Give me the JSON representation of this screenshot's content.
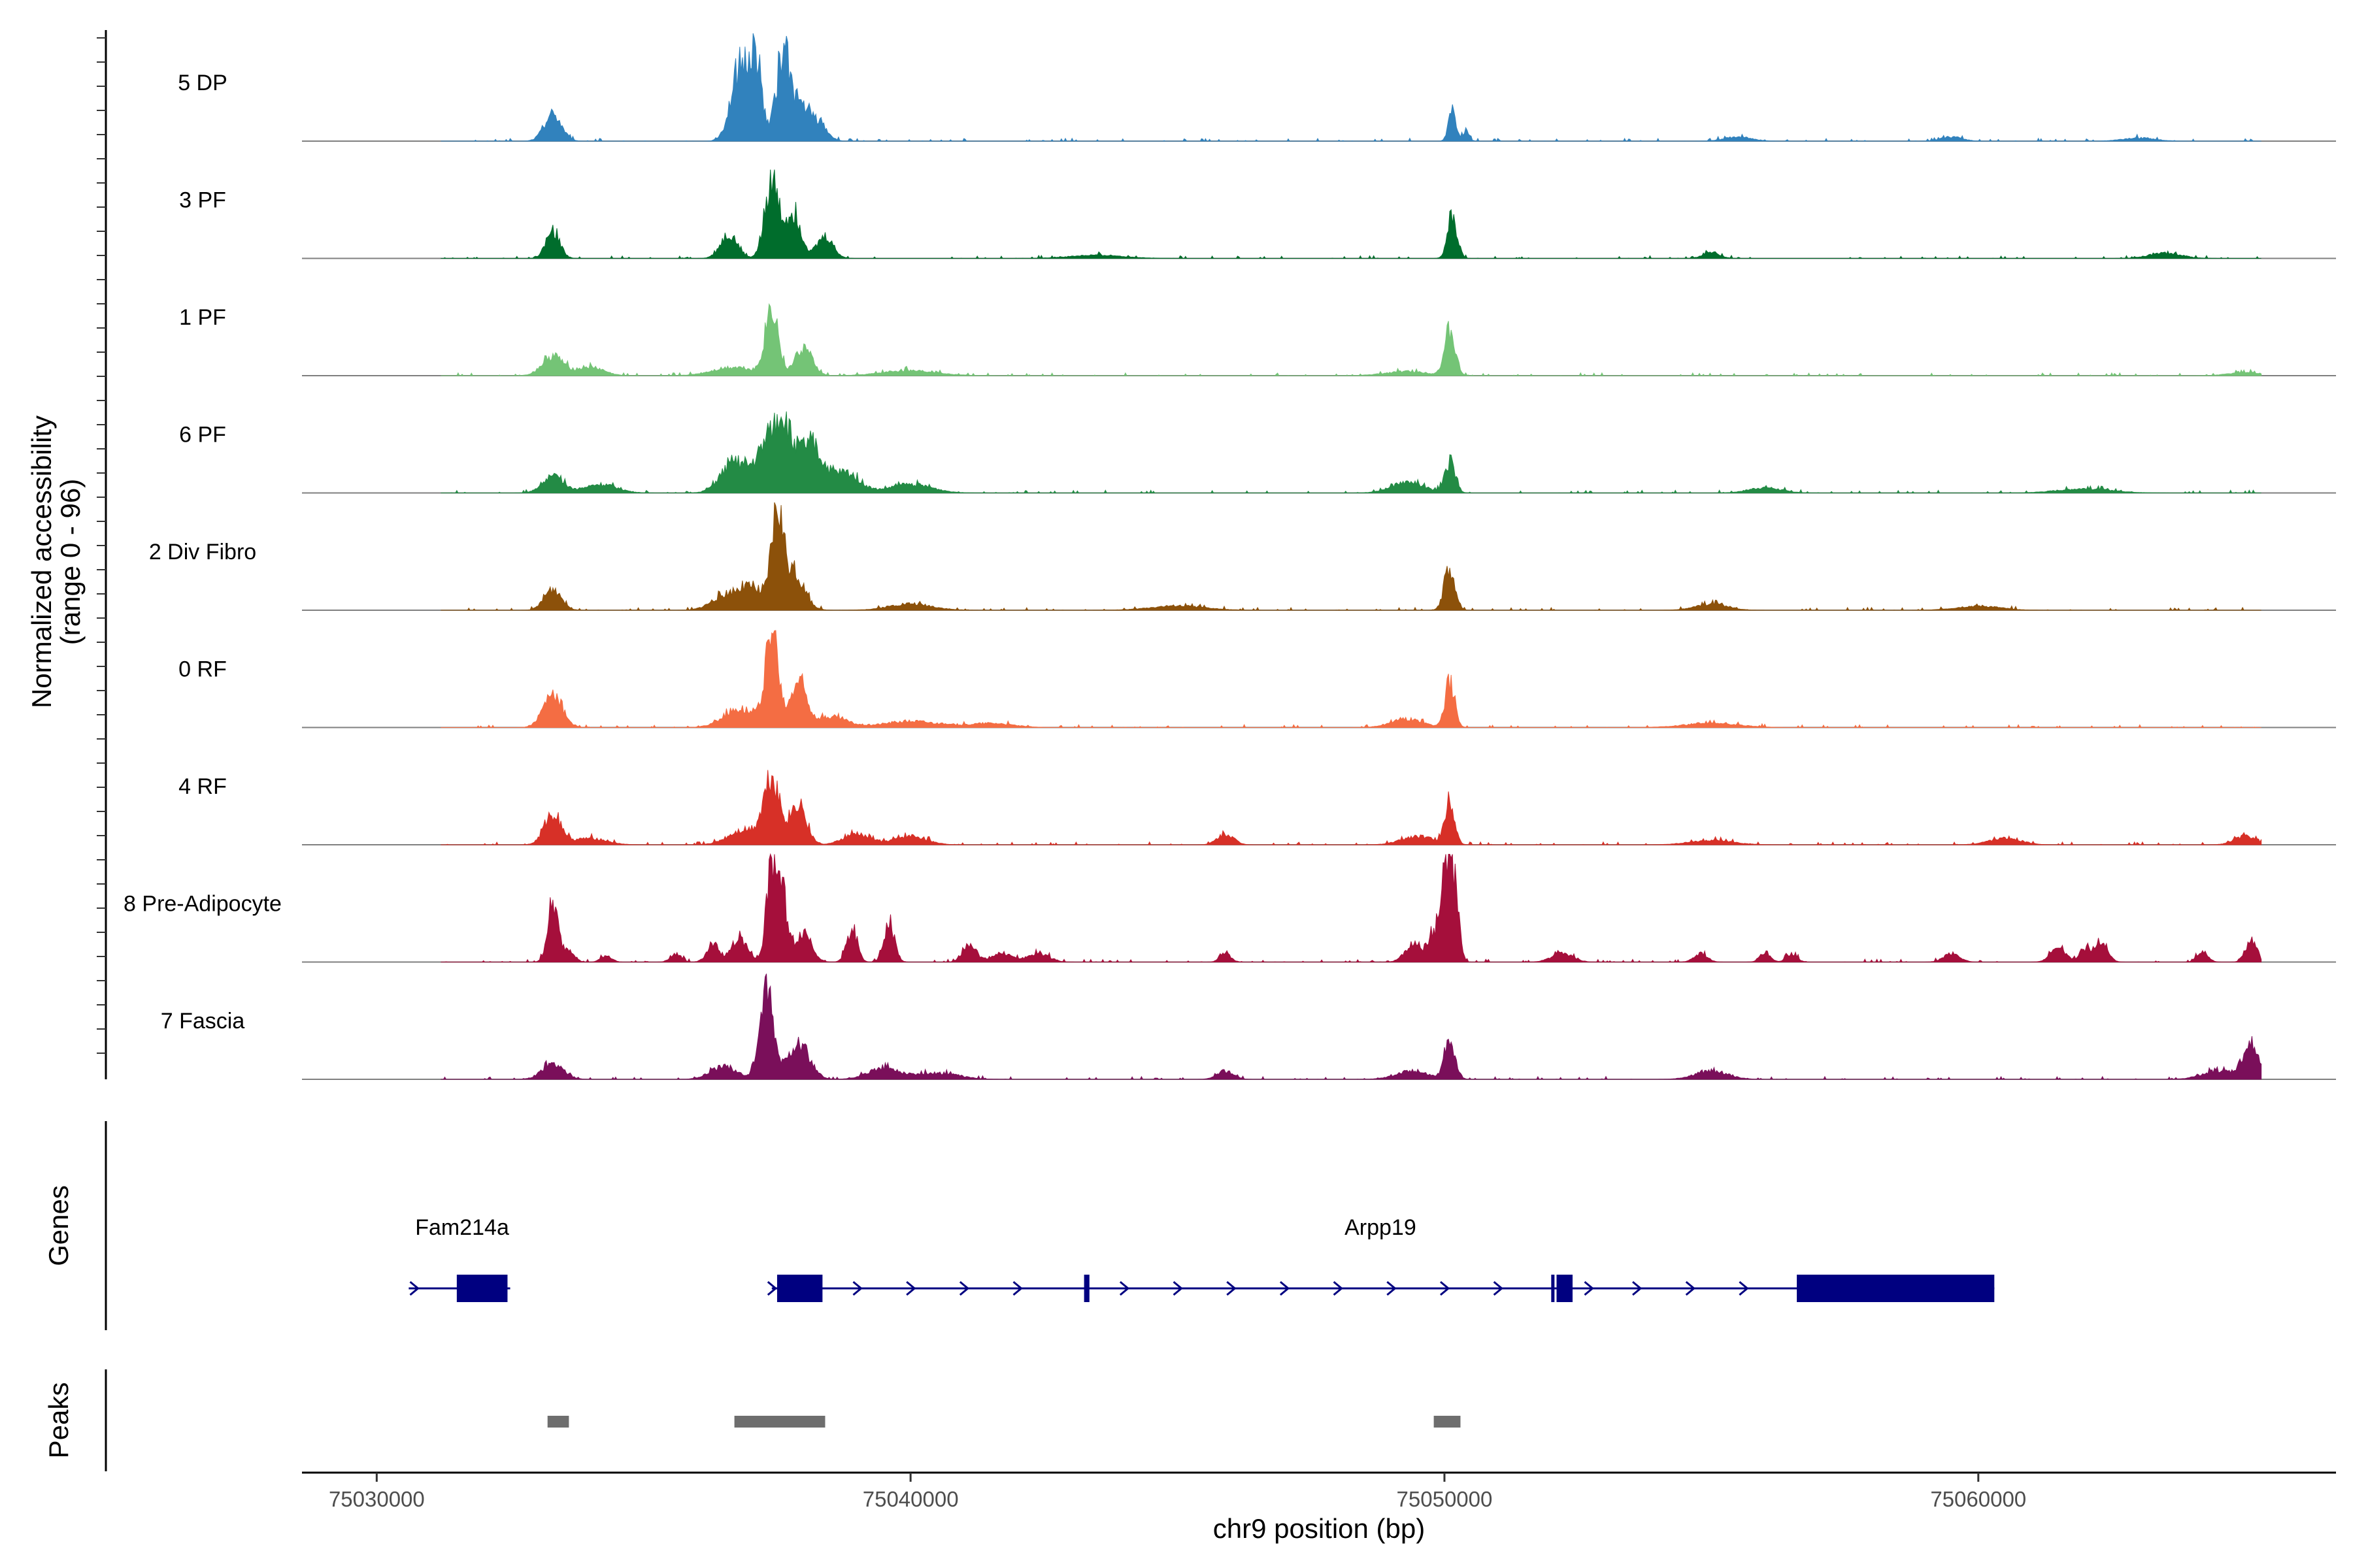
{
  "chart_data": {
    "type": "coverage",
    "y_axis": {
      "title_line1": "Normalized accessibility",
      "title_line2": "(range 0 - 96)",
      "range": [
        0,
        96
      ]
    },
    "x_axis": {
      "title": "chr9 position (bp)",
      "range": [
        75028600,
        75066700
      ],
      "ticks": [
        75030000,
        75040000,
        75050000,
        75060000
      ],
      "tick_labels": [
        "75030000",
        "75040000",
        "75050000",
        "75060000"
      ]
    },
    "tracks": [
      {
        "label": "5 DP",
        "color": "#3182bd",
        "peaks": [
          [
            75033300,
            25,
            160
          ],
          [
            75036800,
            65,
            170
          ],
          [
            75037100,
            70,
            120
          ],
          [
            75037600,
            72,
            120
          ],
          [
            75037900,
            35,
            200
          ],
          [
            75038300,
            14,
            150
          ],
          [
            75050150,
            30,
            70
          ],
          [
            75050400,
            8,
            60
          ],
          [
            75055500,
            4,
            250
          ],
          [
            75059500,
            4,
            200
          ],
          [
            75063000,
            3,
            300
          ]
        ]
      },
      {
        "label": "3 PF",
        "color": "#006d2c",
        "peaks": [
          [
            75033300,
            25,
            130
          ],
          [
            75036600,
            22,
            160
          ],
          [
            75037400,
            70,
            130
          ],
          [
            75037800,
            42,
            150
          ],
          [
            75038400,
            20,
            150
          ],
          [
            75050150,
            38,
            90
          ],
          [
            75043500,
            3,
            500
          ],
          [
            75055000,
            6,
            150
          ],
          [
            75063500,
            5,
            300
          ]
        ]
      },
      {
        "label": "1 PF",
        "color": "#74c476",
        "peaks": [
          [
            75033300,
            18,
            200
          ],
          [
            75034000,
            8,
            250
          ],
          [
            75036700,
            8,
            400
          ],
          [
            75037400,
            62,
            120
          ],
          [
            75038000,
            25,
            160
          ],
          [
            75040000,
            5,
            500
          ],
          [
            75050100,
            40,
            100
          ],
          [
            75049300,
            4,
            400
          ],
          [
            75065000,
            3,
            300
          ]
        ]
      },
      {
        "label": "6 PF",
        "color": "#238b45",
        "peaks": [
          [
            75033300,
            15,
            200
          ],
          [
            75034200,
            8,
            300
          ],
          [
            75036700,
            28,
            250
          ],
          [
            75037300,
            40,
            200
          ],
          [
            75037600,
            55,
            150
          ],
          [
            75038100,
            45,
            250
          ],
          [
            75038800,
            18,
            250
          ],
          [
            75040000,
            8,
            400
          ],
          [
            75050100,
            28,
            100
          ],
          [
            75049300,
            10,
            300
          ],
          [
            75056000,
            5,
            300
          ],
          [
            75062000,
            4,
            500
          ]
        ]
      },
      {
        "label": "2 Div Fibro",
        "color": "#8c510a",
        "peaks": [
          [
            75033300,
            20,
            160
          ],
          [
            75036500,
            12,
            250
          ],
          [
            75037000,
            20,
            250
          ],
          [
            75037500,
            82,
            110
          ],
          [
            75037800,
            35,
            200
          ],
          [
            75040000,
            6,
            400
          ],
          [
            75050100,
            40,
            100
          ],
          [
            75045000,
            4,
            500
          ],
          [
            75055000,
            6,
            300
          ],
          [
            75060000,
            4,
            400
          ]
        ]
      },
      {
        "label": "0 RF",
        "color": "#f46d43",
        "peaks": [
          [
            75033300,
            30,
            180
          ],
          [
            75036800,
            18,
            300
          ],
          [
            75037400,
            85,
            120
          ],
          [
            75037900,
            42,
            150
          ],
          [
            75038500,
            10,
            300
          ],
          [
            75040000,
            6,
            500
          ],
          [
            75041500,
            4,
            400
          ],
          [
            75050100,
            42,
            90
          ],
          [
            75049300,
            8,
            300
          ],
          [
            75055000,
            4,
            500
          ]
        ]
      },
      {
        "label": "4 RF",
        "color": "#d73027",
        "peaks": [
          [
            75033300,
            28,
            160
          ],
          [
            75034000,
            6,
            300
          ],
          [
            75036900,
            14,
            300
          ],
          [
            75037400,
            60,
            150
          ],
          [
            75037900,
            38,
            150
          ],
          [
            75039000,
            10,
            250
          ],
          [
            75040000,
            8,
            300
          ],
          [
            75045900,
            10,
            150
          ],
          [
            75050100,
            42,
            90
          ],
          [
            75049500,
            8,
            300
          ],
          [
            75055000,
            4,
            400
          ],
          [
            75060500,
            6,
            300
          ],
          [
            75065000,
            8,
            200
          ]
        ]
      },
      {
        "label": "8 Pre-Adipocyte",
        "color": "#a50f3b",
        "peaks": [
          [
            75033300,
            52,
            100
          ],
          [
            75033600,
            12,
            100
          ],
          [
            75034300,
            6,
            100
          ],
          [
            75035600,
            8,
            100
          ],
          [
            75036300,
            15,
            120
          ],
          [
            75036800,
            22,
            150
          ],
          [
            75037400,
            88,
            100
          ],
          [
            75037600,
            55,
            100
          ],
          [
            75038000,
            28,
            150
          ],
          [
            75038900,
            30,
            100
          ],
          [
            75039600,
            35,
            100
          ],
          [
            75041100,
            18,
            120
          ],
          [
            75041700,
            8,
            200
          ],
          [
            75042400,
            8,
            200
          ],
          [
            75045900,
            8,
            100
          ],
          [
            75049400,
            16,
            150
          ],
          [
            75049800,
            25,
            120
          ],
          [
            75050050,
            85,
            100
          ],
          [
            75050200,
            50,
            80
          ],
          [
            75052200,
            8,
            200
          ],
          [
            75054800,
            8,
            120
          ],
          [
            75056000,
            8,
            100
          ],
          [
            75056500,
            8,
            100
          ],
          [
            75059500,
            8,
            150
          ],
          [
            75061500,
            12,
            150
          ],
          [
            75062000,
            12,
            100
          ],
          [
            75062300,
            20,
            120
          ],
          [
            75064200,
            10,
            100
          ],
          [
            75065100,
            20,
            100
          ]
        ]
      },
      {
        "label": "7 Fascia",
        "color": "#7a0f5a",
        "peaks": [
          [
            75033300,
            15,
            200
          ],
          [
            75036500,
            12,
            250
          ],
          [
            75037300,
            80,
            130
          ],
          [
            75037900,
            35,
            200
          ],
          [
            75039500,
            10,
            300
          ],
          [
            75040500,
            6,
            400
          ],
          [
            75050100,
            35,
            100
          ],
          [
            75049400,
            8,
            300
          ],
          [
            75045900,
            8,
            150
          ],
          [
            75055000,
            8,
            300
          ],
          [
            75065100,
            30,
            150
          ],
          [
            75064500,
            8,
            300
          ]
        ]
      }
    ],
    "genes": [
      {
        "name": "Fam214a",
        "color": "#000080",
        "intron": [
          75030600,
          75032500
        ],
        "exons": [
          [
            75031500,
            75032450
          ]
        ],
        "arrows": [
          75030700
        ]
      },
      {
        "name": "Arpp19",
        "color": "#000080",
        "intron": [
          75037400,
          75060300
        ],
        "exons": [
          [
            75037500,
            75038350
          ],
          [
            75043250,
            75043350
          ],
          [
            75052000,
            75052050
          ],
          [
            75052100,
            75052400
          ],
          [
            75056600,
            75060300
          ]
        ],
        "arrows": [
          75037400,
          75039000,
          75040000,
          75041000,
          75042000,
          75044000,
          75045000,
          75046000,
          75047000,
          75048000,
          75049000,
          75050000,
          75051000,
          75052700,
          75053600,
          75054600,
          75055600
        ]
      }
    ],
    "peaks_track": {
      "label": "Peaks",
      "color": "#6e6e6e",
      "regions": [
        [
          75033200,
          75033600
        ],
        [
          75036700,
          75038400
        ],
        [
          75049800,
          75050300
        ]
      ]
    },
    "panel_titles": {
      "genes": "Genes",
      "peaks": "Peaks"
    }
  }
}
